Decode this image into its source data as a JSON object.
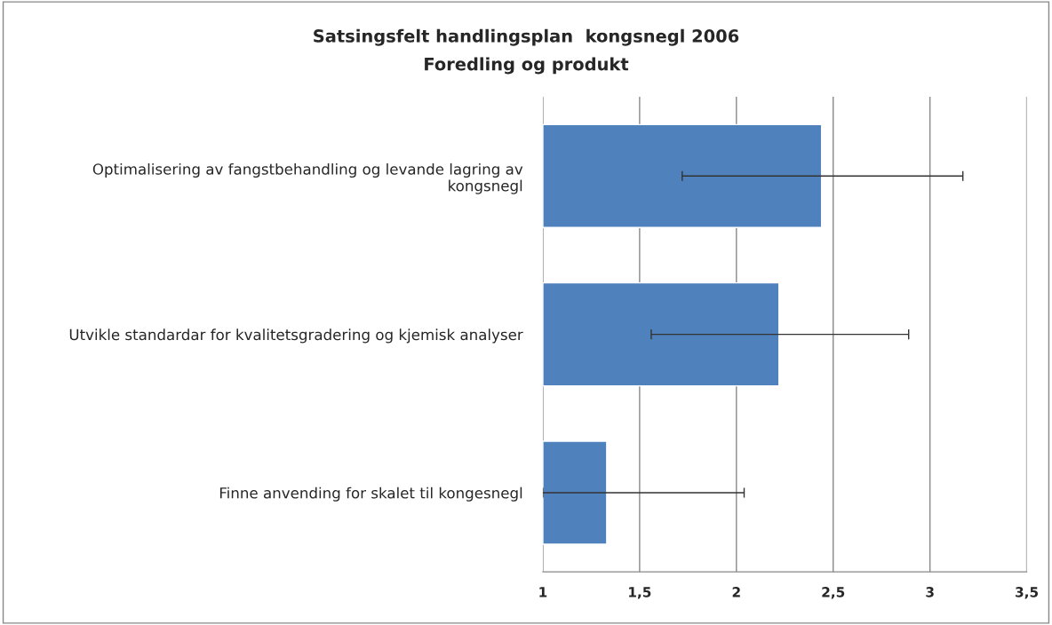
{
  "chart_data": {
    "type": "bar",
    "orientation": "horizontal",
    "title": "Satsingsfelt handlingsplan  kongsnegl 2006",
    "subtitle": "Foredling og produkt",
    "categories": [
      "Optimalisering av fangstbehandling og levande lagring av\nkongsnegl",
      "Utvikle standardar for kvalitetsgradering og kjemisk analyser",
      "Finne anvending for skalet til kongesnegl"
    ],
    "values": [
      2.44,
      2.22,
      1.33
    ],
    "errors": [
      [
        1.72,
        3.17
      ],
      [
        1.56,
        2.89
      ],
      [
        1.0,
        2.04
      ]
    ],
    "color": "#4f81bd",
    "xlim": [
      1,
      3.5
    ],
    "xticks": [
      1,
      {
        "value": 1.5,
        "label": "1,5"
      },
      2,
      {
        "value": 2.5,
        "label": "2,5"
      },
      3,
      {
        "value": 3.5,
        "label": "3,5"
      }
    ],
    "grid": "x"
  }
}
